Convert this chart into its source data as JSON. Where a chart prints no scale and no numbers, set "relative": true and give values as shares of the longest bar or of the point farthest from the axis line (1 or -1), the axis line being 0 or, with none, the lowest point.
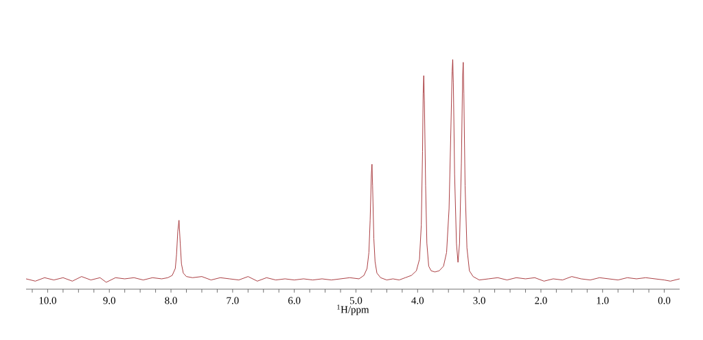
{
  "chart_data": {
    "type": "line",
    "relative": true,
    "xlabel": "$^{1}$H/ppm",
    "xlim": [
      10.35,
      -0.25
    ],
    "xticks": [
      {
        "value": 10,
        "label": "10.0"
      },
      {
        "value": 9,
        "label": "9.0"
      },
      {
        "value": 8,
        "label": "8.0"
      },
      {
        "value": 7,
        "label": "7.0"
      },
      {
        "value": 6,
        "label": "6.0"
      },
      {
        "value": 5,
        "label": "5.0"
      },
      {
        "value": 4,
        "label": "4.0"
      },
      {
        "value": 3,
        "label": "3.0"
      },
      {
        "value": 2,
        "label": "2.0"
      },
      {
        "value": 1,
        "label": "1.0"
      },
      {
        "value": 0,
        "label": "0.0"
      },
      {
        "value": 10.25,
        "label": null
      },
      {
        "value": 9.75,
        "label": null
      },
      {
        "value": 9.5,
        "label": null
      },
      {
        "value": 9.25,
        "label": null
      },
      {
        "value": 8.75,
        "label": null
      },
      {
        "value": 8.5,
        "label": null
      },
      {
        "value": 8.25,
        "label": null
      },
      {
        "value": 7.75,
        "label": null
      },
      {
        "value": 7.5,
        "label": null
      },
      {
        "value": 7.25,
        "label": null
      },
      {
        "value": 6.75,
        "label": null
      },
      {
        "value": 6.5,
        "label": null
      },
      {
        "value": 6.25,
        "label": null
      },
      {
        "value": 5.75,
        "label": null
      },
      {
        "value": 5.5,
        "label": null
      },
      {
        "value": 5.25,
        "label": null
      },
      {
        "value": 4.75,
        "label": null
      },
      {
        "value": 4.5,
        "label": null
      },
      {
        "value": 4.25,
        "label": null
      },
      {
        "value": 3.75,
        "label": null
      },
      {
        "value": 3.5,
        "label": null
      },
      {
        "value": 3.25,
        "label": null
      },
      {
        "value": 2.75,
        "label": null
      },
      {
        "value": 2.5,
        "label": null
      },
      {
        "value": 2.25,
        "label": null
      },
      {
        "value": 1.75,
        "label": null
      },
      {
        "value": 1.5,
        "label": null
      },
      {
        "value": 1.25,
        "label": null
      },
      {
        "value": 0.75,
        "label": null
      },
      {
        "value": 0.5,
        "label": null
      },
      {
        "value": 0.25,
        "label": null
      }
    ],
    "line_style": "solid",
    "series": [
      {
        "color": "#a0282d",
        "x": [
          10.35,
          10.2,
          10.05,
          9.9,
          9.75,
          9.6,
          9.45,
          9.3,
          9.15,
          9.05,
          8.9,
          8.75,
          8.6,
          8.45,
          8.3,
          8.15,
          8.05,
          7.98,
          7.93,
          7.91,
          7.89,
          7.87,
          7.85,
          7.83,
          7.8,
          7.75,
          7.65,
          7.5,
          7.35,
          7.2,
          7.05,
          6.9,
          6.75,
          6.6,
          6.45,
          6.3,
          6.15,
          6.0,
          5.85,
          5.7,
          5.55,
          5.4,
          5.25,
          5.1,
          4.95,
          4.87,
          4.82,
          4.79,
          4.77,
          4.75,
          4.74,
          4.73,
          4.71,
          4.69,
          4.66,
          4.6,
          4.5,
          4.4,
          4.3,
          4.2,
          4.1,
          4.02,
          3.97,
          3.94,
          3.92,
          3.91,
          3.9,
          3.89,
          3.87,
          3.85,
          3.82,
          3.78,
          3.72,
          3.65,
          3.58,
          3.53,
          3.49,
          3.46,
          3.44,
          3.43,
          3.42,
          3.4,
          3.37,
          3.345,
          3.32,
          3.29,
          3.27,
          3.26,
          3.25,
          3.23,
          3.2,
          3.16,
          3.1,
          3.0,
          2.85,
          2.7,
          2.55,
          2.4,
          2.25,
          2.1,
          1.95,
          1.8,
          1.65,
          1.5,
          1.35,
          1.2,
          1.05,
          0.9,
          0.75,
          0.6,
          0.45,
          0.3,
          0.15,
          0.0,
          -0.1,
          -0.25
        ],
        "values": [
          0.045,
          0.035,
          0.05,
          0.04,
          0.05,
          0.035,
          0.055,
          0.04,
          0.05,
          0.03,
          0.05,
          0.045,
          0.05,
          0.04,
          0.05,
          0.045,
          0.05,
          0.06,
          0.09,
          0.15,
          0.25,
          0.3,
          0.2,
          0.11,
          0.07,
          0.055,
          0.05,
          0.055,
          0.04,
          0.05,
          0.045,
          0.04,
          0.055,
          0.035,
          0.05,
          0.04,
          0.045,
          0.04,
          0.045,
          0.04,
          0.045,
          0.04,
          0.045,
          0.05,
          0.045,
          0.06,
          0.09,
          0.16,
          0.3,
          0.5,
          0.544,
          0.45,
          0.22,
          0.12,
          0.07,
          0.05,
          0.04,
          0.045,
          0.04,
          0.05,
          0.06,
          0.08,
          0.13,
          0.28,
          0.6,
          0.85,
          0.93,
          0.82,
          0.45,
          0.2,
          0.1,
          0.08,
          0.075,
          0.08,
          0.1,
          0.16,
          0.35,
          0.7,
          0.95,
          1.0,
          0.9,
          0.5,
          0.2,
          0.117,
          0.2,
          0.55,
          0.93,
          0.988,
          0.85,
          0.45,
          0.18,
          0.08,
          0.055,
          0.04,
          0.045,
          0.05,
          0.04,
          0.05,
          0.045,
          0.05,
          0.035,
          0.045,
          0.04,
          0.055,
          0.045,
          0.04,
          0.05,
          0.045,
          0.04,
          0.05,
          0.045,
          0.05,
          0.045,
          0.04,
          0.035,
          0.045
        ]
      }
    ]
  }
}
